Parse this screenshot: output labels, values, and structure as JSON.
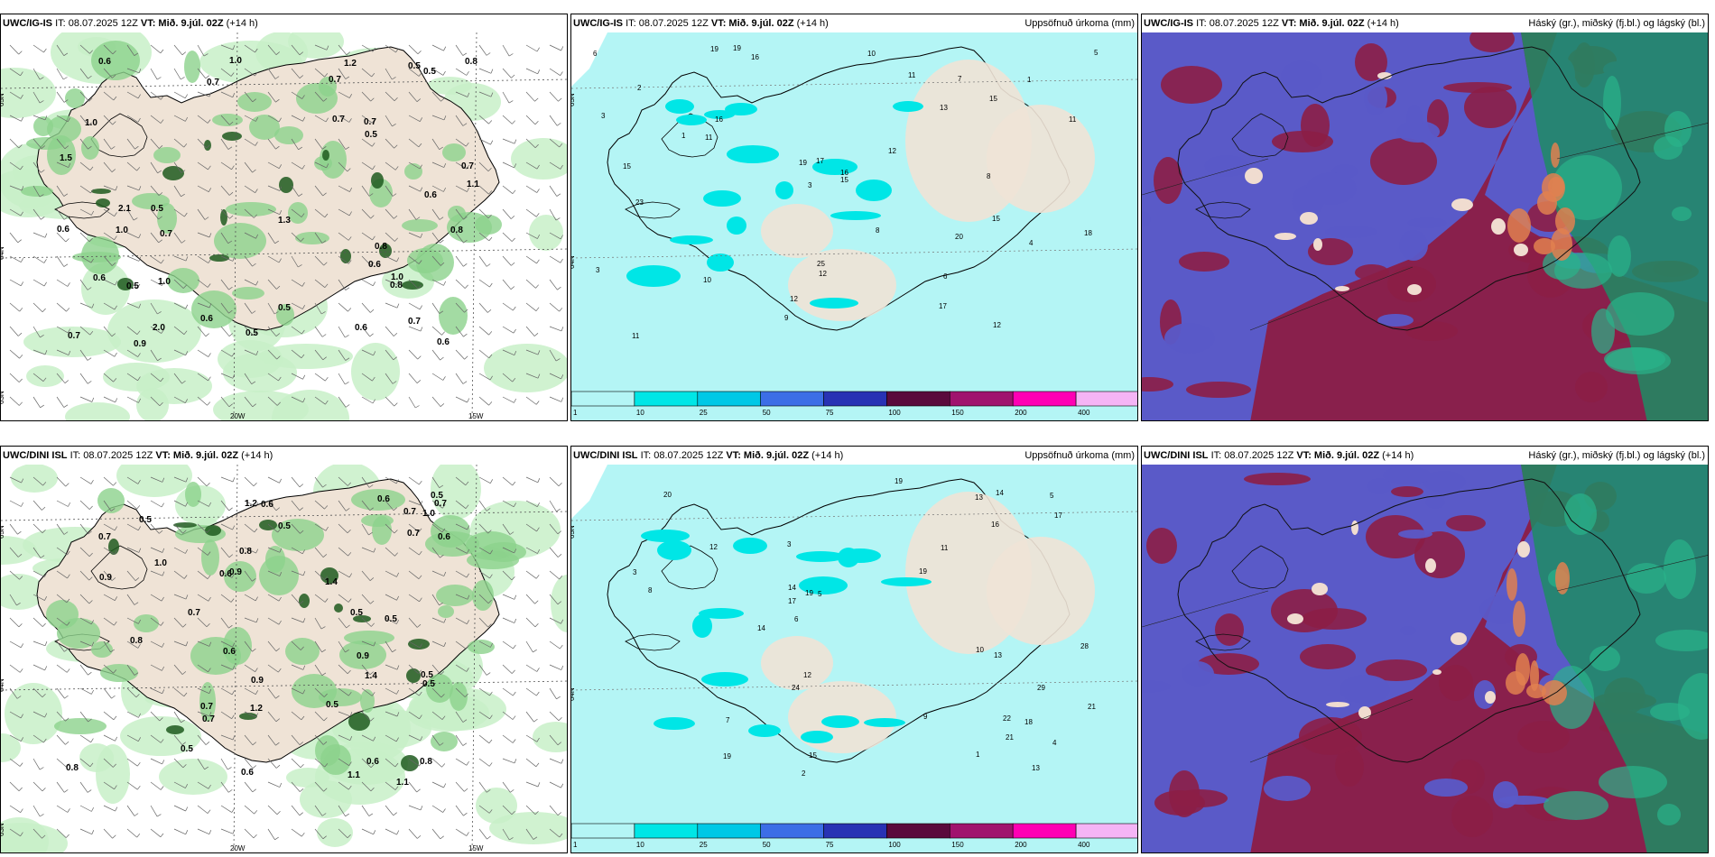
{
  "panels": {
    "p1": {
      "model": "UWC/IG-IS",
      "it": "IT: 08.07.2025 12Z",
      "vt_label": "VT:",
      "vt": "Mið. 9.júl. 02Z",
      "lead": "(+14 h)",
      "right": "",
      "labels": [
        "0.7",
        "0.8",
        "0.5",
        "0.8",
        "0.5",
        "0.7",
        "0.6",
        "0.8",
        "0.9",
        "2.0",
        "1.0",
        "2.1",
        "1.5",
        "1.2",
        "0.5",
        "0.7",
        "0.7",
        "0.6",
        "0.5",
        "0.7",
        "1.1",
        "0.8",
        "0.5",
        "0.7",
        "1.0",
        "0.6",
        "0.5",
        "0.6",
        "0.6",
        "0.5",
        "1.0",
        "0.6",
        "0.6",
        "0.7",
        "1.0",
        "1.3",
        "0.6",
        "0.7",
        "1.0"
      ],
      "axis": {
        "lat1": "65N",
        "lat2": "64N",
        "lat3": "63N",
        "lon1": "20W",
        "lon2": "15W"
      }
    },
    "p2": {
      "model": "UWC/IG-IS",
      "it": "IT: 08.07.2025 12Z",
      "vt_label": "VT:",
      "vt": "Mið. 9.júl. 02Z",
      "lead": "(+14 h)",
      "right": "Uppsöfnuð úrkoma (mm)",
      "labels": [
        "3",
        "1",
        "16",
        "10",
        "13",
        "7",
        "12",
        "15",
        "19",
        "25",
        "16",
        "15",
        "10",
        "8",
        "6",
        "11",
        "12",
        "11",
        "9",
        "17",
        "19",
        "15",
        "15",
        "12",
        "11",
        "17",
        "23",
        "19",
        "18",
        "16",
        "11",
        "20",
        "12",
        "2",
        "3",
        "4",
        "6",
        "1",
        "5",
        "3",
        "8"
      ],
      "axis": {
        "lat1": "65N",
        "lat2": "64N"
      }
    },
    "p3": {
      "model": "UWC/IG-IS",
      "it": "IT: 08.07.2025 12Z",
      "vt_label": "VT:",
      "vt": "Mið. 9.júl. 02Z",
      "lead": "(+14 h)",
      "right": "Háský (gr.), miðský (fj.bl.) og lágský (bl.)"
    },
    "p4": {
      "model": "UWC/DINI ISL",
      "it": "IT: 08.07.2025 12Z",
      "vt_label": "VT:",
      "vt": "Mið. 9.júl. 02Z",
      "lead": "(+14 h)",
      "right": "",
      "labels": [
        "0.9",
        "0.5",
        "1.2",
        "0.8",
        "0.9",
        "1.0",
        "1.1",
        "1.0",
        "0.5",
        "0.7",
        "0.7",
        "0.6",
        "0.5",
        "1.4",
        "0.5",
        "0.7",
        "0.6",
        "0.6",
        "0.5",
        "0.5",
        "0.7",
        "0.8",
        "0.5",
        "0.6",
        "0.9",
        "0.8",
        "0.7",
        "0.7",
        "0.6",
        "0.8",
        "0.9",
        "0.6",
        "0.5",
        "1.4",
        "1.2",
        "0.7",
        "0.5",
        "1.1",
        "0.6"
      ],
      "axis": {
        "lat1": "65N",
        "lat2": "64N",
        "lat3": "63N",
        "lon1": "20W",
        "lon2": "15W"
      }
    },
    "p5": {
      "model": "UWC/DINI ISL",
      "it": "IT: 08.07.2025 12Z",
      "vt_label": "VT:",
      "vt": "Mið. 9.júl. 02Z",
      "lead": "(+14 h)",
      "right": "Uppsöfnuð úrkoma (mm)",
      "labels": [
        "3",
        "16",
        "14",
        "13",
        "12",
        "14",
        "12",
        "19",
        "28",
        "20",
        "19",
        "13",
        "21",
        "17",
        "15",
        "19",
        "24",
        "21",
        "22",
        "19",
        "18",
        "13",
        "14",
        "17",
        "29",
        "5",
        "4",
        "6",
        "8",
        "10",
        "11",
        "9",
        "7",
        "3",
        "2",
        "1",
        "5"
      ],
      "axis": {
        "lat1": "65N",
        "lat2": "64N"
      }
    },
    "p6": {
      "model": "UWC/DINI ISL",
      "it": "IT: 08.07.2025 12Z",
      "vt_label": "VT:",
      "vt": "Mið. 9.júl. 02Z",
      "lead": "(+14 h)",
      "right": "Háský (gr.), miðský (fj.bl.) og lágský (bl.)"
    }
  },
  "colorbar": {
    "ticks": [
      "1",
      "10",
      "25",
      "50",
      "75",
      "100",
      "150",
      "200",
      "400"
    ],
    "colors": [
      "#b4f5f5",
      "#00e6e6",
      "#00c8e6",
      "#3c6ee6",
      "#2832b4",
      "#5a0a3c",
      "#a0146e",
      "#ff00b4",
      "#f5b4f5"
    ]
  },
  "colors": {
    "land": "#efe3d6",
    "precip_light": "#c8f0c8",
    "precip_mid": "#8cd28c",
    "precip_dark": "#1e5a1e",
    "sea_precip": "#b4f5f5",
    "cloud_high": "#1e8c64",
    "cloud_mid": "#8c1e46",
    "cloud_low": "#5a5ac8"
  }
}
